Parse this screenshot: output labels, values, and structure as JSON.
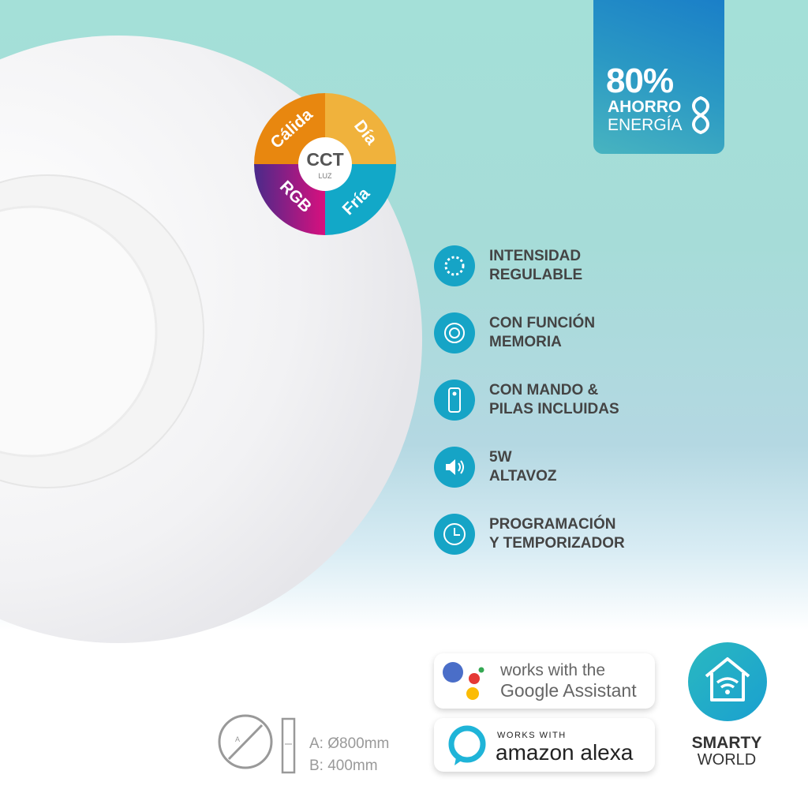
{
  "savings_badge": {
    "percent": "80%",
    "line1": "AHORRO",
    "line2": "ENERGÍA",
    "icon": "leaf-icon"
  },
  "cct_wheel": {
    "center_title": "CCT",
    "center_sub": "LUZ",
    "segments": [
      {
        "label": "Cálida",
        "color": "#e8870f"
      },
      {
        "label": "Día",
        "color": "#f0b23c"
      },
      {
        "label": "Fría",
        "color": "#12a8c8"
      },
      {
        "label": "RGB",
        "color": "#8a1a9a"
      }
    ]
  },
  "features": [
    {
      "icon": "dimmer-icon",
      "line1": "INTENSIDAD",
      "line2": "REGULABLE"
    },
    {
      "icon": "memory-icon",
      "line1": "CON FUNCIÓN",
      "line2": "MEMORIA"
    },
    {
      "icon": "remote-icon",
      "line1": "CON MANDO &",
      "line2": "PILAS INCLUIDAS"
    },
    {
      "icon": "speaker-icon",
      "line1": "5W",
      "line2": "ALTAVOZ"
    },
    {
      "icon": "clock-icon",
      "line1": "PROGRAMACIÓN",
      "line2": "Y TEMPORIZADOR"
    }
  ],
  "dimensions": {
    "a_label": "A",
    "a": "A: Ø800mm",
    "b": "B: 400mm"
  },
  "google": {
    "line1": "works with the",
    "line2": "Google Assistant"
  },
  "alexa": {
    "line1": "WORKS WITH",
    "line2": "amazon alexa"
  },
  "brand": {
    "line1": "SMARTY",
    "line2": "WORLD",
    "color": "#1aa8c8"
  },
  "colors": {
    "accent": "#16a4c6",
    "text": "#444444"
  }
}
